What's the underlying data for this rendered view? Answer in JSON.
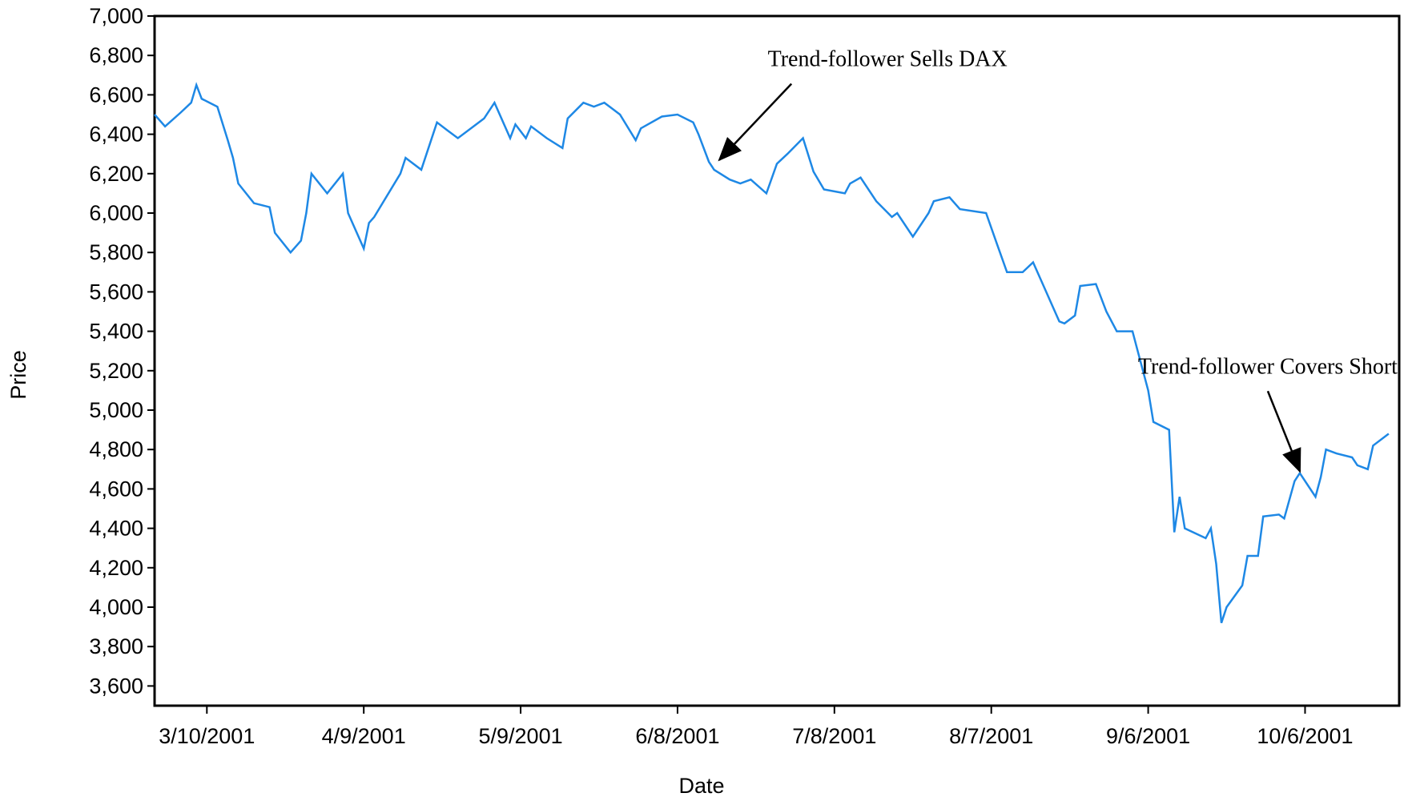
{
  "chart_data": {
    "type": "line",
    "x_label": "Date",
    "y_label": "Price",
    "xlim": [
      "2001-02-28",
      "2001-10-24"
    ],
    "xticks": [
      {
        "value": "2001-03-10",
        "label": "3/10/2001"
      },
      {
        "value": "2001-04-09",
        "label": "4/9/2001"
      },
      {
        "value": "2001-05-09",
        "label": "5/9/2001"
      },
      {
        "value": "2001-06-08",
        "label": "6/8/2001"
      },
      {
        "value": "2001-07-08",
        "label": "7/8/2001"
      },
      {
        "value": "2001-08-07",
        "label": "8/7/2001"
      },
      {
        "value": "2001-09-06",
        "label": "9/6/2001"
      },
      {
        "value": "2001-10-06",
        "label": "10/6/2001"
      }
    ],
    "ylim": [
      3500,
      7000
    ],
    "yticks": [
      {
        "value": 3600,
        "label": "3,600"
      },
      {
        "value": 3800,
        "label": "3,800"
      },
      {
        "value": 4000,
        "label": "4,000"
      },
      {
        "value": 4200,
        "label": "4,200"
      },
      {
        "value": 4400,
        "label": "4,400"
      },
      {
        "value": 4600,
        "label": "4,600"
      },
      {
        "value": 4800,
        "label": "4,800"
      },
      {
        "value": 5000,
        "label": "5,000"
      },
      {
        "value": 5200,
        "label": "5,200"
      },
      {
        "value": 5400,
        "label": "5,400"
      },
      {
        "value": 5600,
        "label": "5,600"
      },
      {
        "value": 5800,
        "label": "5,800"
      },
      {
        "value": 6000,
        "label": "6,000"
      },
      {
        "value": 6200,
        "label": "6,200"
      },
      {
        "value": 6400,
        "label": "6,400"
      },
      {
        "value": 6600,
        "label": "6,600"
      },
      {
        "value": 6800,
        "label": "6,800"
      },
      {
        "value": 7000,
        "label": "7,000"
      }
    ],
    "color": "#1e88e5",
    "x": [
      "2001-02-28",
      "2001-03-02",
      "2001-03-05",
      "2001-03-07",
      "2001-03-08",
      "2001-03-09",
      "2001-03-12",
      "2001-03-14",
      "2001-03-15",
      "2001-03-16",
      "2001-03-19",
      "2001-03-22",
      "2001-03-23",
      "2001-03-26",
      "2001-03-28",
      "2001-03-29",
      "2001-03-30",
      "2001-04-02",
      "2001-04-05",
      "2001-04-06",
      "2001-04-09",
      "2001-04-10",
      "2001-04-11",
      "2001-04-16",
      "2001-04-17",
      "2001-04-20",
      "2001-04-23",
      "2001-04-25",
      "2001-04-27",
      "2001-04-30",
      "2001-05-02",
      "2001-05-04",
      "2001-05-07",
      "2001-05-08",
      "2001-05-10",
      "2001-05-11",
      "2001-05-14",
      "2001-05-17",
      "2001-05-18",
      "2001-05-21",
      "2001-05-23",
      "2001-05-25",
      "2001-05-28",
      "2001-05-31",
      "2001-06-01",
      "2001-06-05",
      "2001-06-08",
      "2001-06-11",
      "2001-06-12",
      "2001-06-14",
      "2001-06-15",
      "2001-06-18",
      "2001-06-20",
      "2001-06-22",
      "2001-06-25",
      "2001-06-27",
      "2001-06-29",
      "2001-07-02",
      "2001-07-04",
      "2001-07-06",
      "2001-07-10",
      "2001-07-11",
      "2001-07-13",
      "2001-07-16",
      "2001-07-19",
      "2001-07-20",
      "2001-07-23",
      "2001-07-26",
      "2001-07-27",
      "2001-07-30",
      "2001-08-01",
      "2001-08-06",
      "2001-08-08",
      "2001-08-10",
      "2001-08-13",
      "2001-08-15",
      "2001-08-17",
      "2001-08-20",
      "2001-08-21",
      "2001-08-23",
      "2001-08-24",
      "2001-08-27",
      "2001-08-29",
      "2001-08-31",
      "2001-09-03",
      "2001-09-04",
      "2001-09-06",
      "2001-09-07",
      "2001-09-10",
      "2001-09-11",
      "2001-09-12",
      "2001-09-13",
      "2001-09-17",
      "2001-09-18",
      "2001-09-19",
      "2001-09-20",
      "2001-09-21",
      "2001-09-24",
      "2001-09-25",
      "2001-09-27",
      "2001-09-28",
      "2001-10-01",
      "2001-10-02",
      "2001-10-04",
      "2001-10-05",
      "2001-10-08",
      "2001-10-09",
      "2001-10-10",
      "2001-10-12",
      "2001-10-15",
      "2001-10-16",
      "2001-10-18",
      "2001-10-19",
      "2001-10-22"
    ],
    "values": [
      6500,
      6440,
      6510,
      6560,
      6650,
      6580,
      6540,
      6370,
      6280,
      6150,
      6050,
      6030,
      5900,
      5800,
      5860,
      6000,
      6200,
      6100,
      6200,
      6000,
      5820,
      5950,
      5980,
      6200,
      6280,
      6220,
      6460,
      6420,
      6380,
      6440,
      6480,
      6560,
      6380,
      6450,
      6380,
      6440,
      6380,
      6330,
      6480,
      6560,
      6540,
      6560,
      6500,
      6370,
      6430,
      6490,
      6500,
      6460,
      6400,
      6260,
      6220,
      6170,
      6150,
      6170,
      6100,
      6250,
      6300,
      6380,
      6210,
      6120,
      6100,
      6150,
      6180,
      6060,
      5980,
      6000,
      5880,
      6000,
      6060,
      6080,
      6020,
      6000,
      5850,
      5700,
      5700,
      5750,
      5630,
      5450,
      5440,
      5480,
      5630,
      5640,
      5500,
      5400,
      5400,
      5300,
      5100,
      4940,
      4900,
      4380,
      4560,
      4400,
      4350,
      4400,
      4220,
      3920,
      4000,
      4110,
      4260,
      4260,
      4460,
      4470,
      4450,
      4640,
      4680,
      4560,
      4660,
      4800,
      4780,
      4760,
      4720,
      4700,
      4820,
      4880
    ],
    "annotations": [
      {
        "text": "Trend-follower Sells DAX",
        "x": "2001-06-16",
        "y": 6270
      },
      {
        "text": "Trend-follower Covers Short",
        "x": "2001-10-05",
        "y": 4690
      }
    ]
  }
}
